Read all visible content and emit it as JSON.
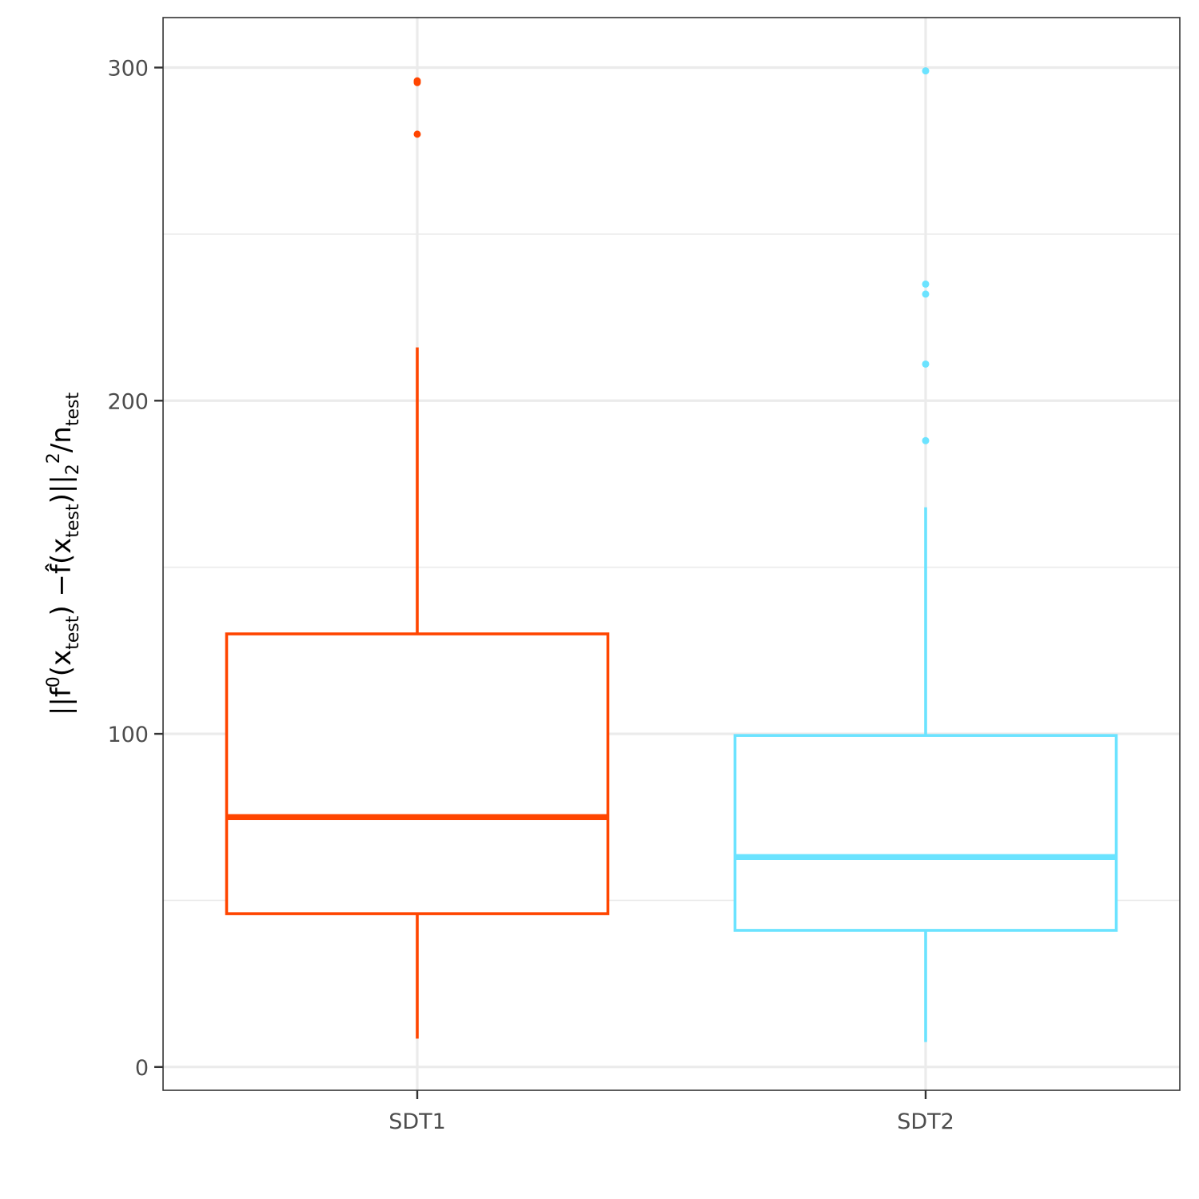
{
  "chart_data": {
    "type": "box",
    "categories": [
      "SDT1",
      "SDT2"
    ],
    "title": "",
    "xlabel": "",
    "ylabel": {
      "parts": [
        {
          "t": "||f",
          "s": "n"
        },
        {
          "t": "0",
          "s": "sup"
        },
        {
          "t": "(x",
          "s": "n"
        },
        {
          "t": "test",
          "s": "sub"
        },
        {
          "t": ") −",
          "s": "n"
        },
        {
          "t": "f̂",
          "s": "n"
        },
        {
          "t": "(x",
          "s": "n"
        },
        {
          "t": "test",
          "s": "sub"
        },
        {
          "t": ")||",
          "s": "n"
        },
        {
          "t": "2",
          "s": "sub"
        },
        {
          "t": "2",
          "s": "sup"
        },
        {
          "t": "/n",
          "s": "n"
        },
        {
          "t": "test",
          "s": "sub"
        }
      ]
    },
    "ylim": [
      -7,
      315
    ],
    "yticks": [
      0,
      100,
      200,
      300
    ],
    "yticks_minor": [
      50,
      150,
      250
    ],
    "grid": true,
    "legend": "none",
    "series": [
      {
        "category": "SDT1",
        "color": "#FF4500",
        "whisker_low": 8.5,
        "q1": 46,
        "median": 75,
        "q3": 130,
        "whisker_high": 216,
        "outliers": [
          296,
          295.5,
          280
        ]
      },
      {
        "category": "SDT2",
        "color": "#6BE3FF",
        "whisker_low": 7.5,
        "q1": 41,
        "median": 63,
        "q3": 99.5,
        "whisker_high": 168,
        "outliers": [
          299,
          235,
          232,
          211,
          188
        ]
      }
    ]
  }
}
